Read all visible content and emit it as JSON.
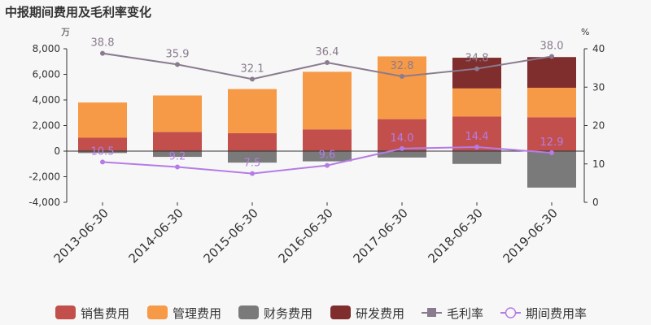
{
  "title": "中报期间费用及毛利率变化",
  "colors": {
    "销售费用": "#c24f4c",
    "管理费用": "#f79a47",
    "财务费用": "#7a7a7a",
    "研发费用": "#802d2e",
    "毛利率": "#8a7b8f",
    "期间费用率": "#b57ce6"
  },
  "chart_data": {
    "type": "bar",
    "stacked": true,
    "categories": [
      "2013-06-30",
      "2014-06-30",
      "2015-06-30",
      "2016-06-30",
      "2017-06-30",
      "2018-06-30",
      "2019-06-30"
    ],
    "series": [
      {
        "name": "销售费用",
        "type": "bar",
        "axis": "left",
        "values": [
          1050,
          1500,
          1400,
          1700,
          2500,
          2700,
          2650
        ]
      },
      {
        "name": "管理费用",
        "type": "bar",
        "axis": "left",
        "values": [
          2750,
          2850,
          3450,
          4500,
          4900,
          2200,
          2300
        ]
      },
      {
        "name": "财务费用",
        "type": "bar",
        "axis": "left",
        "values": [
          -150,
          -450,
          -900,
          -800,
          -500,
          -1000,
          -2850
        ]
      },
      {
        "name": "研发费用",
        "type": "bar",
        "axis": "left",
        "values": [
          0,
          0,
          0,
          0,
          0,
          2400,
          2400
        ]
      },
      {
        "name": "毛利率",
        "type": "line",
        "axis": "right",
        "values": [
          38.8,
          35.9,
          32.1,
          36.4,
          32.8,
          34.8,
          38.0
        ]
      },
      {
        "name": "期间费用率",
        "type": "line",
        "axis": "right",
        "values": [
          10.5,
          9.2,
          7.5,
          9.6,
          14.0,
          14.4,
          12.9
        ]
      }
    ],
    "left_axis": {
      "unit": "万",
      "min": -4000,
      "max": 8000,
      "ticks": [
        "8,000",
        "6,000",
        "4,000",
        "2,000",
        "0",
        "-2,000",
        "-4,000"
      ],
      "tick_values": [
        8000,
        6000,
        4000,
        2000,
        0,
        -2000,
        -4000
      ]
    },
    "right_axis": {
      "unit": "%",
      "min": 0,
      "max": 40,
      "ticks": [
        "40",
        "30",
        "20",
        "10",
        "0"
      ],
      "tick_values": [
        40,
        30,
        20,
        10,
        0
      ]
    },
    "legend": [
      "销售费用",
      "管理费用",
      "财务费用",
      "研发费用",
      "毛利率",
      "期间费用率"
    ],
    "legend_position": "bottom",
    "grid": false
  }
}
